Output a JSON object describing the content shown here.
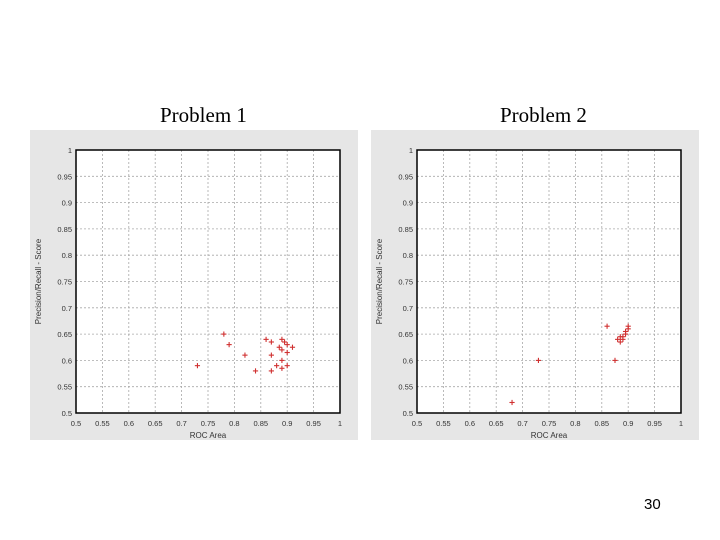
{
  "slide_number": "30",
  "colors": {
    "panel_bg": "#e6e6e6",
    "plot_bg": "#ffffff",
    "grid": "#a8a8a8",
    "marker": "#d03030"
  },
  "chart_data": [
    {
      "type": "scatter",
      "title": "Problem 1",
      "xlabel": "ROC Area",
      "ylabel": "Precision/Recall - Score",
      "xlim": [
        0.5,
        1
      ],
      "ylim": [
        0.5,
        1
      ],
      "xticks": [
        0.5,
        0.55,
        0.6,
        0.65,
        0.7,
        0.75,
        0.8,
        0.85,
        0.9,
        0.95,
        1
      ],
      "yticks": [
        0.5,
        0.55,
        0.6,
        0.65,
        0.7,
        0.75,
        0.8,
        0.85,
        0.9,
        0.95,
        1
      ],
      "xtick_labels": [
        "0.5",
        "0.55",
        "0.6",
        "0.65",
        "0.7",
        "0.75",
        "0.8",
        "0.85",
        "0.9",
        "0.95",
        "1"
      ],
      "ytick_labels": [
        "0.5",
        "0.55",
        "0.6",
        "0.65",
        "0.7",
        "0.75",
        "0.8",
        "0.85",
        "0.9",
        "0.95",
        "1"
      ],
      "grid": true,
      "marker": "+",
      "points": [
        {
          "x": 0.73,
          "y": 0.59
        },
        {
          "x": 0.78,
          "y": 0.65
        },
        {
          "x": 0.79,
          "y": 0.63
        },
        {
          "x": 0.82,
          "y": 0.61
        },
        {
          "x": 0.84,
          "y": 0.58
        },
        {
          "x": 0.86,
          "y": 0.64
        },
        {
          "x": 0.87,
          "y": 0.635
        },
        {
          "x": 0.87,
          "y": 0.61
        },
        {
          "x": 0.87,
          "y": 0.58
        },
        {
          "x": 0.88,
          "y": 0.59
        },
        {
          "x": 0.885,
          "y": 0.625
        },
        {
          "x": 0.89,
          "y": 0.64
        },
        {
          "x": 0.89,
          "y": 0.62
        },
        {
          "x": 0.89,
          "y": 0.6
        },
        {
          "x": 0.895,
          "y": 0.635
        },
        {
          "x": 0.9,
          "y": 0.63
        },
        {
          "x": 0.9,
          "y": 0.615
        },
        {
          "x": 0.9,
          "y": 0.59
        },
        {
          "x": 0.91,
          "y": 0.625
        },
        {
          "x": 0.89,
          "y": 0.585
        }
      ]
    },
    {
      "type": "scatter",
      "title": "Problem 2",
      "xlabel": "ROC Area",
      "ylabel": "Precision/Recall - Score",
      "xlim": [
        0.5,
        1
      ],
      "ylim": [
        0.5,
        1
      ],
      "xticks": [
        0.5,
        0.55,
        0.6,
        0.65,
        0.7,
        0.75,
        0.8,
        0.85,
        0.9,
        0.95,
        1
      ],
      "yticks": [
        0.5,
        0.55,
        0.6,
        0.65,
        0.7,
        0.75,
        0.8,
        0.85,
        0.9,
        0.95,
        1
      ],
      "xtick_labels": [
        "0.5",
        "0.55",
        "0.6",
        "0.65",
        "0.7",
        "0.75",
        "0.8",
        "0.85",
        "0.9",
        "0.95",
        "1"
      ],
      "ytick_labels": [
        "0.5",
        "0.55",
        "0.6",
        "0.65",
        "0.7",
        "0.75",
        "0.8",
        "0.85",
        "0.9",
        "0.95",
        "1"
      ],
      "grid": true,
      "marker": "+",
      "points": [
        {
          "x": 0.68,
          "y": 0.52
        },
        {
          "x": 0.73,
          "y": 0.6
        },
        {
          "x": 0.86,
          "y": 0.665
        },
        {
          "x": 0.875,
          "y": 0.6
        },
        {
          "x": 0.88,
          "y": 0.64
        },
        {
          "x": 0.885,
          "y": 0.635
        },
        {
          "x": 0.89,
          "y": 0.645
        },
        {
          "x": 0.89,
          "y": 0.64
        },
        {
          "x": 0.895,
          "y": 0.65
        },
        {
          "x": 0.895,
          "y": 0.655
        },
        {
          "x": 0.9,
          "y": 0.665
        },
        {
          "x": 0.9,
          "y": 0.66
        },
        {
          "x": 0.885,
          "y": 0.645
        }
      ]
    }
  ]
}
